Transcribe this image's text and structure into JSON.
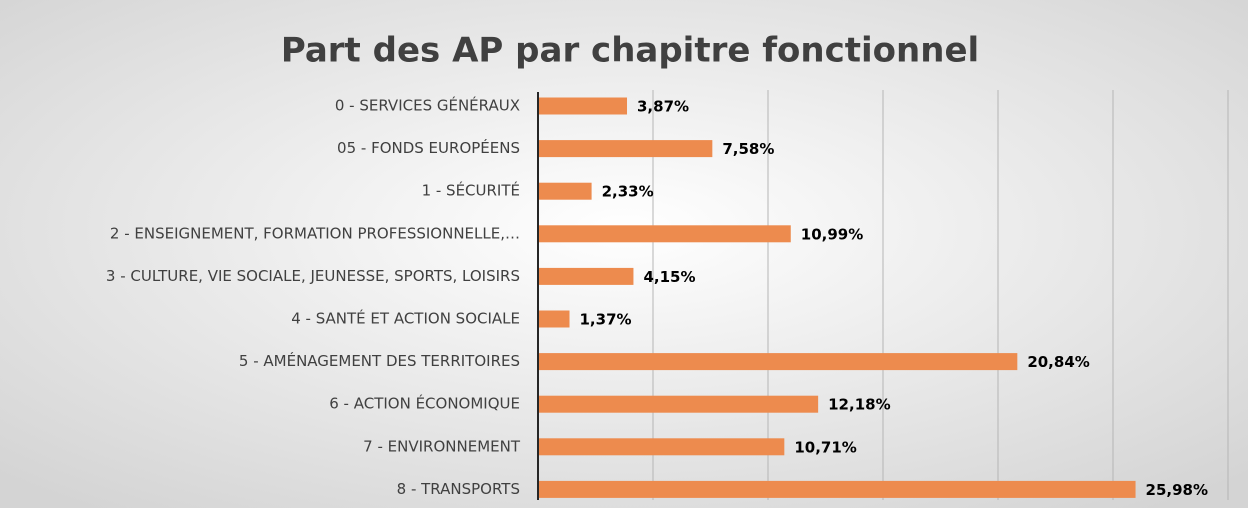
{
  "chart_data": {
    "type": "bar",
    "orientation": "horizontal",
    "title": "Part des AP par chapitre fonctionnel",
    "categories": [
      "0 - SERVICES GÉNÉRAUX",
      "05 - FONDS EUROPÉENS",
      "1 - SÉCURITÉ",
      "2 - ENSEIGNEMENT, FORMATION PROFESSIONNELLE,…",
      "3 - CULTURE, VIE SOCIALE, JEUNESSE, SPORTS, LOISIRS",
      "4 - SANTÉ ET ACTION SOCIALE",
      "5 - AMÉNAGEMENT DES TERRITOIRES",
      "6 - ACTION ÉCONOMIQUE",
      "7 - ENVIRONNEMENT",
      "8 - TRANSPORTS"
    ],
    "values": [
      3.87,
      7.58,
      2.33,
      10.99,
      4.15,
      1.37,
      20.84,
      12.18,
      10.71,
      25.98
    ],
    "value_labels": [
      "3,87%",
      "7,58%",
      "2,33%",
      "10,99%",
      "4,15%",
      "1,37%",
      "20,84%",
      "12,18%",
      "10,71%",
      "25,98%"
    ],
    "color": "#ed8b4e",
    "xlim": [
      0,
      30
    ],
    "xticks": [
      0,
      5,
      10,
      15,
      20,
      25,
      30
    ],
    "grid": true
  }
}
